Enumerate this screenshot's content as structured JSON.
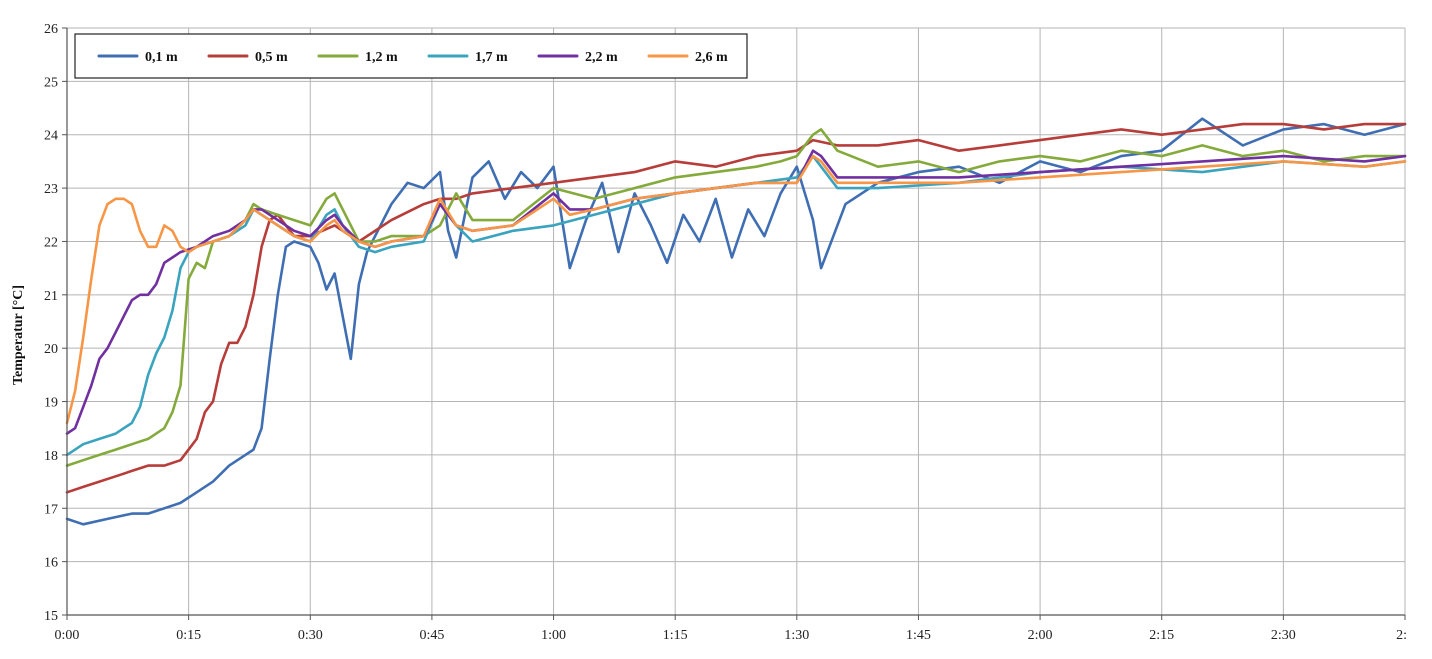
{
  "chart_data": {
    "type": "line",
    "title": "",
    "xlabel": "",
    "ylabel": "Temperatur  [°C]",
    "x_ticks": [
      "0:00",
      "0:15",
      "0:30",
      "0:45",
      "1:00",
      "1:15",
      "1:30",
      "1:45",
      "2:00",
      "2:15",
      "2:30",
      "2:"
    ],
    "x_tick_values_min": [
      0,
      15,
      30,
      45,
      60,
      75,
      90,
      105,
      120,
      135,
      150,
      165
    ],
    "xlim_min": [
      0,
      165
    ],
    "y_ticks": [
      "15",
      "16",
      "17",
      "18",
      "19",
      "20",
      "21",
      "22",
      "23",
      "24",
      "25",
      "26"
    ],
    "ylim": [
      15,
      26
    ],
    "grid": true,
    "legend_position": "top-left",
    "series": [
      {
        "name": "0,1 m",
        "color": "#3f6eb3",
        "x": [
          0,
          2,
          5,
          8,
          10,
          12,
          14,
          16,
          18,
          20,
          22,
          23,
          24,
          25,
          26,
          27,
          28,
          30,
          31,
          32,
          33,
          34,
          35,
          36,
          37,
          38,
          40,
          42,
          44,
          46,
          47,
          48,
          50,
          52,
          54,
          56,
          58,
          60,
          62,
          64,
          66,
          68,
          70,
          72,
          74,
          76,
          78,
          80,
          82,
          84,
          86,
          88,
          90,
          92,
          93,
          94,
          96,
          98,
          100,
          105,
          110,
          115,
          120,
          125,
          130,
          135,
          140,
          145,
          150,
          155,
          160,
          165
        ],
        "y": [
          16.8,
          16.7,
          16.8,
          16.9,
          16.9,
          17.0,
          17.1,
          17.3,
          17.5,
          17.8,
          18.0,
          18.1,
          18.5,
          19.8,
          21.0,
          21.9,
          22.0,
          21.9,
          21.6,
          21.1,
          21.4,
          20.6,
          19.8,
          21.2,
          21.8,
          22.1,
          22.7,
          23.1,
          23.0,
          23.3,
          22.2,
          21.7,
          23.2,
          23.5,
          22.8,
          23.3,
          23.0,
          23.4,
          21.5,
          22.4,
          23.1,
          21.8,
          22.9,
          22.3,
          21.6,
          22.5,
          22.0,
          22.8,
          21.7,
          22.6,
          22.1,
          22.9,
          23.4,
          22.4,
          21.5,
          21.9,
          22.7,
          22.9,
          23.1,
          23.3,
          23.4,
          23.1,
          23.5,
          23.3,
          23.6,
          23.7,
          24.3,
          23.8,
          24.1,
          24.2,
          24.0,
          24.2
        ]
      },
      {
        "name": "0,5 m",
        "color": "#b63d3a",
        "x": [
          0,
          2,
          4,
          6,
          8,
          10,
          12,
          14,
          15,
          16,
          17,
          18,
          19,
          20,
          21,
          22,
          23,
          24,
          25,
          26,
          27,
          28,
          30,
          33,
          36,
          40,
          44,
          46,
          48,
          50,
          55,
          60,
          65,
          70,
          75,
          80,
          85,
          90,
          92,
          95,
          100,
          105,
          110,
          115,
          120,
          125,
          130,
          135,
          140,
          145,
          150,
          155,
          160,
          165
        ],
        "y": [
          17.3,
          17.4,
          17.5,
          17.6,
          17.7,
          17.8,
          17.8,
          17.9,
          18.1,
          18.3,
          18.8,
          19.0,
          19.7,
          20.1,
          20.1,
          20.4,
          21.0,
          21.9,
          22.4,
          22.5,
          22.3,
          22.1,
          22.1,
          22.3,
          22.0,
          22.4,
          22.7,
          22.8,
          22.8,
          22.9,
          23.0,
          23.1,
          23.2,
          23.3,
          23.5,
          23.4,
          23.6,
          23.7,
          23.9,
          23.8,
          23.8,
          23.9,
          23.7,
          23.8,
          23.9,
          24.0,
          24.1,
          24.0,
          24.1,
          24.2,
          24.2,
          24.1,
          24.2,
          24.2
        ]
      },
      {
        "name": "1,2 m",
        "color": "#84aa3c",
        "x": [
          0,
          2,
          4,
          6,
          8,
          10,
          12,
          13,
          14,
          15,
          16,
          17,
          18,
          20,
          22,
          23,
          24,
          26,
          28,
          30,
          32,
          33,
          34,
          36,
          38,
          40,
          44,
          46,
          48,
          50,
          55,
          60,
          65,
          70,
          75,
          80,
          85,
          88,
          90,
          92,
          93,
          95,
          100,
          105,
          110,
          115,
          120,
          125,
          130,
          135,
          140,
          145,
          150,
          155,
          160,
          165
        ],
        "y": [
          17.8,
          17.9,
          18.0,
          18.1,
          18.2,
          18.3,
          18.5,
          18.8,
          19.3,
          21.3,
          21.6,
          21.5,
          22.0,
          22.1,
          22.4,
          22.7,
          22.6,
          22.5,
          22.4,
          22.3,
          22.8,
          22.9,
          22.6,
          22.0,
          22.0,
          22.1,
          22.1,
          22.3,
          22.9,
          22.4,
          22.4,
          23.0,
          22.8,
          23.0,
          23.2,
          23.3,
          23.4,
          23.5,
          23.6,
          24.0,
          24.1,
          23.7,
          23.4,
          23.5,
          23.3,
          23.5,
          23.6,
          23.5,
          23.7,
          23.6,
          23.8,
          23.6,
          23.7,
          23.5,
          23.6,
          23.6
        ]
      },
      {
        "name": "1,7 m",
        "color": "#3aa3bd",
        "x": [
          0,
          2,
          4,
          6,
          8,
          9,
          10,
          11,
          12,
          13,
          14,
          15,
          16,
          18,
          20,
          22,
          23,
          24,
          26,
          28,
          30,
          32,
          33,
          34,
          36,
          38,
          40,
          44,
          46,
          48,
          50,
          55,
          60,
          65,
          70,
          75,
          80,
          85,
          90,
          92,
          93,
          95,
          100,
          110,
          120,
          130,
          140,
          150,
          160,
          165
        ],
        "y": [
          18.0,
          18.2,
          18.3,
          18.4,
          18.6,
          18.9,
          19.5,
          19.9,
          20.2,
          20.7,
          21.5,
          21.8,
          21.9,
          22.0,
          22.1,
          22.3,
          22.6,
          22.5,
          22.3,
          22.1,
          22.0,
          22.5,
          22.6,
          22.3,
          21.9,
          21.8,
          21.9,
          22.0,
          22.7,
          22.3,
          22.0,
          22.2,
          22.3,
          22.5,
          22.7,
          22.9,
          23.0,
          23.1,
          23.2,
          23.6,
          23.4,
          23.0,
          23.0,
          23.1,
          23.3,
          23.4,
          23.3,
          23.5,
          23.4,
          23.5
        ]
      },
      {
        "name": "2,2 m",
        "color": "#7030a0",
        "x": [
          0,
          1,
          2,
          3,
          4,
          5,
          6,
          7,
          8,
          9,
          10,
          11,
          12,
          13,
          14,
          16,
          18,
          20,
          22,
          23,
          24,
          26,
          28,
          30,
          32,
          33,
          34,
          36,
          38,
          40,
          44,
          46,
          48,
          50,
          55,
          60,
          62,
          65,
          70,
          75,
          80,
          85,
          90,
          92,
          93,
          95,
          100,
          110,
          120,
          130,
          140,
          150,
          160,
          165
        ],
        "y": [
          18.4,
          18.5,
          18.9,
          19.3,
          19.8,
          20.0,
          20.3,
          20.6,
          20.9,
          21.0,
          21.0,
          21.2,
          21.6,
          21.7,
          21.8,
          21.9,
          22.1,
          22.2,
          22.4,
          22.6,
          22.6,
          22.4,
          22.2,
          22.1,
          22.4,
          22.5,
          22.3,
          22.0,
          21.9,
          22.0,
          22.1,
          22.7,
          22.3,
          22.2,
          22.3,
          22.9,
          22.6,
          22.6,
          22.8,
          22.9,
          23.0,
          23.1,
          23.1,
          23.7,
          23.6,
          23.2,
          23.2,
          23.2,
          23.3,
          23.4,
          23.5,
          23.6,
          23.5,
          23.6
        ]
      },
      {
        "name": "2,6 m",
        "color": "#f79646",
        "x": [
          0,
          1,
          2,
          3,
          4,
          5,
          6,
          7,
          8,
          9,
          10,
          11,
          12,
          13,
          14,
          15,
          16,
          18,
          20,
          22,
          23,
          24,
          26,
          28,
          30,
          32,
          33,
          34,
          36,
          38,
          40,
          44,
          46,
          48,
          50,
          55,
          60,
          62,
          65,
          70,
          75,
          80,
          85,
          90,
          92,
          93,
          95,
          100,
          110,
          120,
          130,
          140,
          150,
          160,
          165
        ],
        "y": [
          18.6,
          19.2,
          20.2,
          21.3,
          22.3,
          22.7,
          22.8,
          22.8,
          22.7,
          22.2,
          21.9,
          21.9,
          22.3,
          22.2,
          21.9,
          21.8,
          21.9,
          22.0,
          22.1,
          22.4,
          22.6,
          22.5,
          22.3,
          22.1,
          22.0,
          22.3,
          22.4,
          22.2,
          22.0,
          21.9,
          22.0,
          22.1,
          22.8,
          22.3,
          22.2,
          22.3,
          22.8,
          22.5,
          22.6,
          22.8,
          22.9,
          23.0,
          23.1,
          23.1,
          23.6,
          23.5,
          23.1,
          23.1,
          23.1,
          23.2,
          23.3,
          23.4,
          23.5,
          23.4,
          23.5
        ]
      }
    ]
  }
}
